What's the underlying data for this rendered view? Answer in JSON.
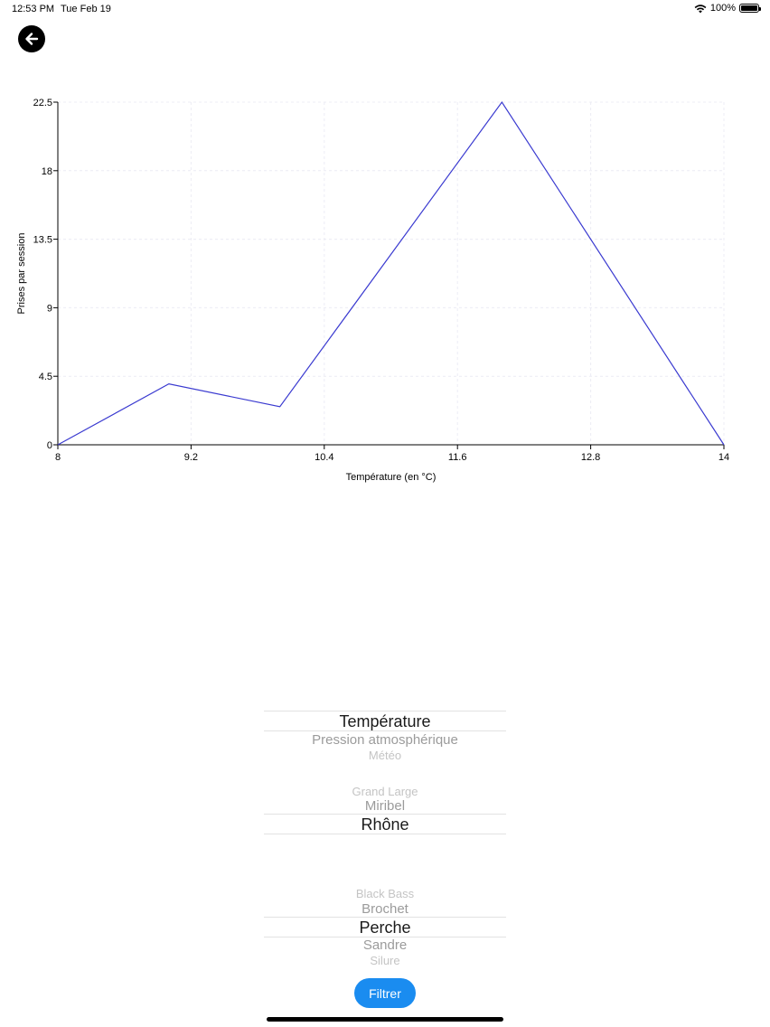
{
  "status_bar": {
    "time": "12:53 PM",
    "date": "Tue Feb 19",
    "battery": "100%",
    "battery_level": 1.0
  },
  "icons": {
    "back": "arrow-left-icon",
    "wifi": "wifi-icon",
    "battery": "battery-icon"
  },
  "colors": {
    "line": "#3a3ad0",
    "button": "#1a8cf0"
  },
  "chart_data": {
    "type": "line",
    "title": "",
    "xlabel": "Température (en °C)",
    "ylabel": "Prises par session",
    "x": [
      8,
      9,
      10,
      12,
      14
    ],
    "series": [
      {
        "values": [
          0,
          4,
          2.5,
          22.5,
          0
        ]
      }
    ],
    "xlim": [
      8,
      14
    ],
    "ylim": [
      0,
      22.5
    ],
    "xticks": [
      "8",
      "9.2",
      "10.4",
      "11.6",
      "12.8",
      "14"
    ],
    "yticks": [
      "0",
      "4.5",
      "9",
      "13.5",
      "18",
      "22.5"
    ],
    "grid": true
  },
  "pickers": {
    "metric": {
      "items": [
        "Température",
        "Pression atmosphérique",
        "Météo"
      ],
      "selected_index": 0
    },
    "location": {
      "items": [
        "Grand Large",
        "Miribel",
        "Rhône"
      ],
      "selected_index": 2
    },
    "species": {
      "items": [
        "Black Bass",
        "Brochet",
        "Perche",
        "Sandre",
        "Silure"
      ],
      "selected_index": 2
    }
  },
  "filter_button": {
    "label": "Filtrer"
  }
}
